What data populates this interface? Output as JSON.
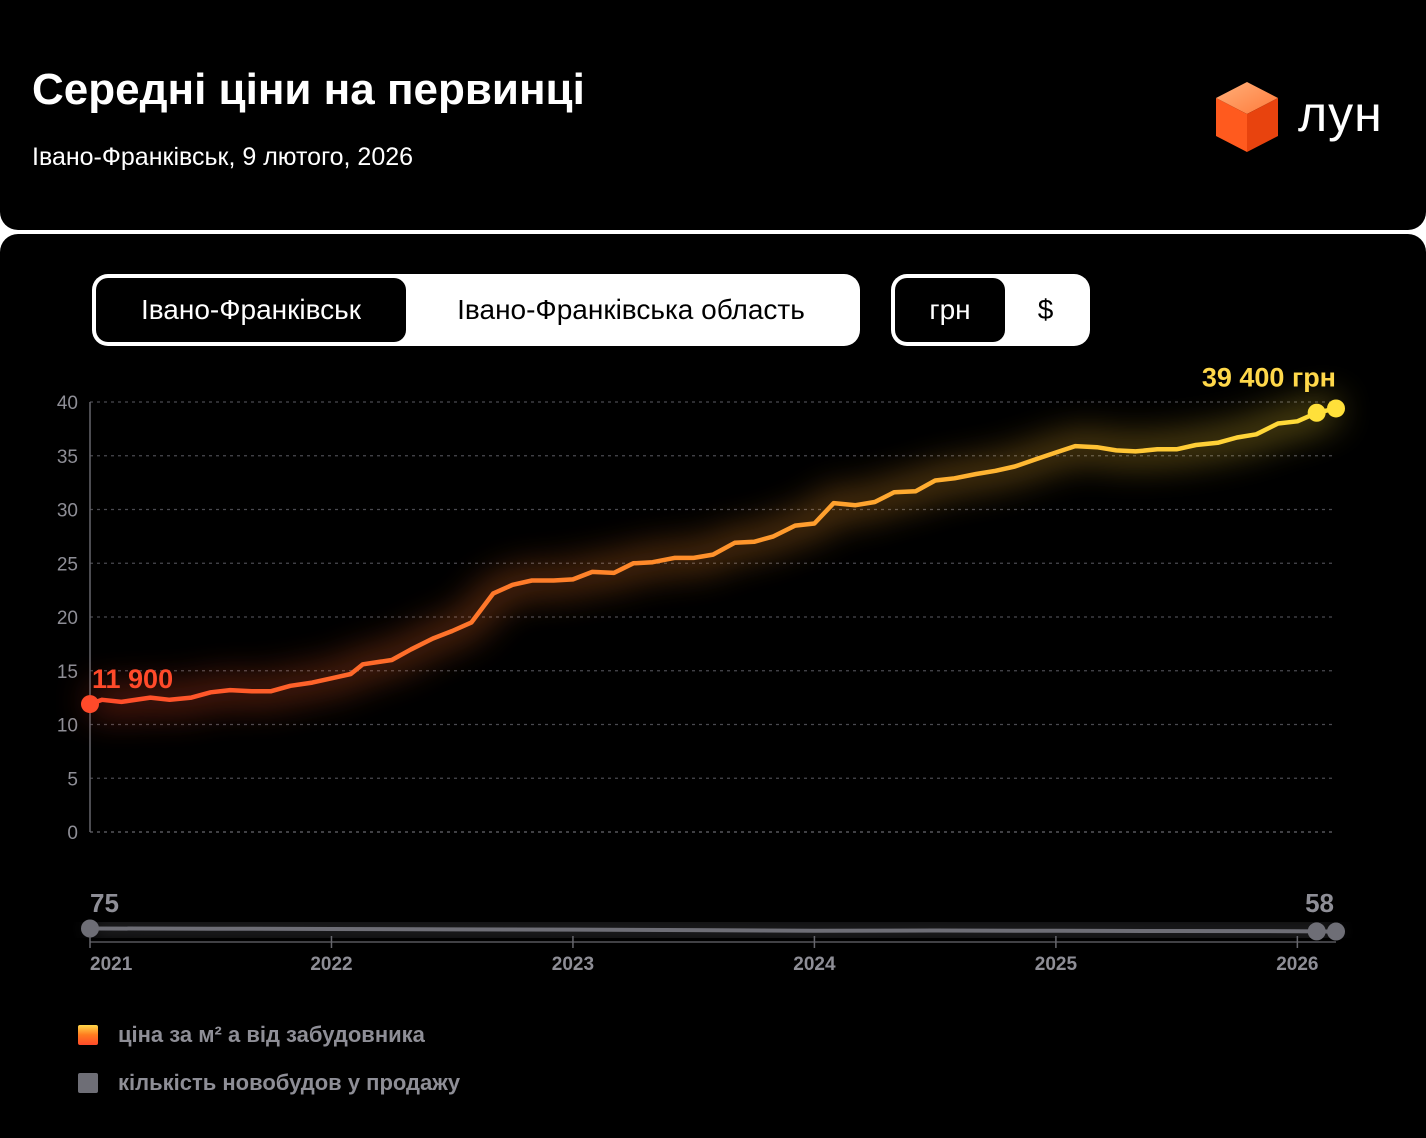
{
  "header": {
    "title": "Середні ціни на первинці",
    "subtitle": "Івано-Франківськ, 9 лютого, 2026",
    "logo_text": "лун"
  },
  "region_toggle": {
    "options": [
      "Івано-Франківськ",
      "Івано-Франківська область"
    ],
    "selected": "Івано-Франківськ"
  },
  "currency_toggle": {
    "options": [
      "грн",
      "$"
    ],
    "selected": "грн"
  },
  "legend": {
    "price": "ціна за м² а від забудовника",
    "count": "кількість новобудов у продажу"
  },
  "colors": {
    "price_start": "#ff4a2a",
    "price_mid": "#ff8a2a",
    "price_end": "#ffe03a",
    "count": "#6e6e76",
    "grid": "#4a4a50",
    "axis_text": "#8e8e96"
  },
  "chart_data": {
    "type": "line",
    "x_tick_labels": [
      "2021",
      "2022",
      "2023",
      "2024",
      "2025",
      "2026"
    ],
    "y_tick_labels": [
      "0",
      "5",
      "10",
      "15",
      "20",
      "25",
      "30",
      "35",
      "40"
    ],
    "ylim": [
      0,
      40
    ],
    "xlim": [
      2021.0,
      2026.16
    ],
    "grid": true,
    "series": [
      {
        "name": "ціна за м² а від забудовника",
        "start_label": "11 900",
        "end_label": "39 400 грн",
        "x": [
          2021.0,
          2021.05,
          2021.13,
          2021.25,
          2021.33,
          2021.42,
          2021.5,
          2021.58,
          2021.67,
          2021.75,
          2021.83,
          2021.92,
          2022.0,
          2022.08,
          2022.13,
          2022.25,
          2022.33,
          2022.42,
          2022.5,
          2022.58,
          2022.67,
          2022.75,
          2022.83,
          2022.92,
          2023.0,
          2023.08,
          2023.17,
          2023.25,
          2023.33,
          2023.42,
          2023.5,
          2023.58,
          2023.67,
          2023.75,
          2023.83,
          2023.92,
          2024.0,
          2024.08,
          2024.17,
          2024.25,
          2024.33,
          2024.42,
          2024.5,
          2024.58,
          2024.67,
          2024.75,
          2024.83,
          2024.92,
          2025.0,
          2025.08,
          2025.17,
          2025.25,
          2025.33,
          2025.42,
          2025.5,
          2025.58,
          2025.67,
          2025.75,
          2025.83,
          2025.92,
          2026.0,
          2026.08,
          2026.16
        ],
        "values": [
          11.9,
          12.3,
          12.1,
          12.5,
          12.3,
          12.5,
          13.0,
          13.2,
          13.1,
          13.1,
          13.6,
          13.9,
          14.3,
          14.7,
          15.6,
          16.0,
          17.0,
          18.0,
          18.7,
          19.5,
          22.2,
          23.0,
          23.4,
          23.4,
          23.5,
          24.2,
          24.1,
          25.0,
          25.1,
          25.5,
          25.5,
          25.8,
          26.9,
          27.0,
          27.5,
          28.5,
          28.7,
          30.6,
          30.4,
          30.7,
          31.6,
          31.7,
          32.7,
          32.9,
          33.3,
          33.6,
          34.0,
          34.7,
          35.3,
          35.9,
          35.8,
          35.5,
          35.4,
          35.6,
          35.6,
          36.0,
          36.2,
          36.7,
          37.0,
          38.0,
          38.2,
          39.0,
          39.4
        ]
      },
      {
        "name": "кількість новобудов у продажу",
        "start_label": "75",
        "end_label": "58",
        "x": [
          2021.0,
          2021.5,
          2022.0,
          2022.5,
          2023.0,
          2023.5,
          2024.0,
          2024.5,
          2025.0,
          2025.5,
          2026.0,
          2026.08,
          2026.16
        ],
        "values": [
          75,
          74,
          72,
          70,
          69,
          66,
          63,
          64,
          62,
          61,
          60,
          59,
          58
        ]
      }
    ]
  }
}
